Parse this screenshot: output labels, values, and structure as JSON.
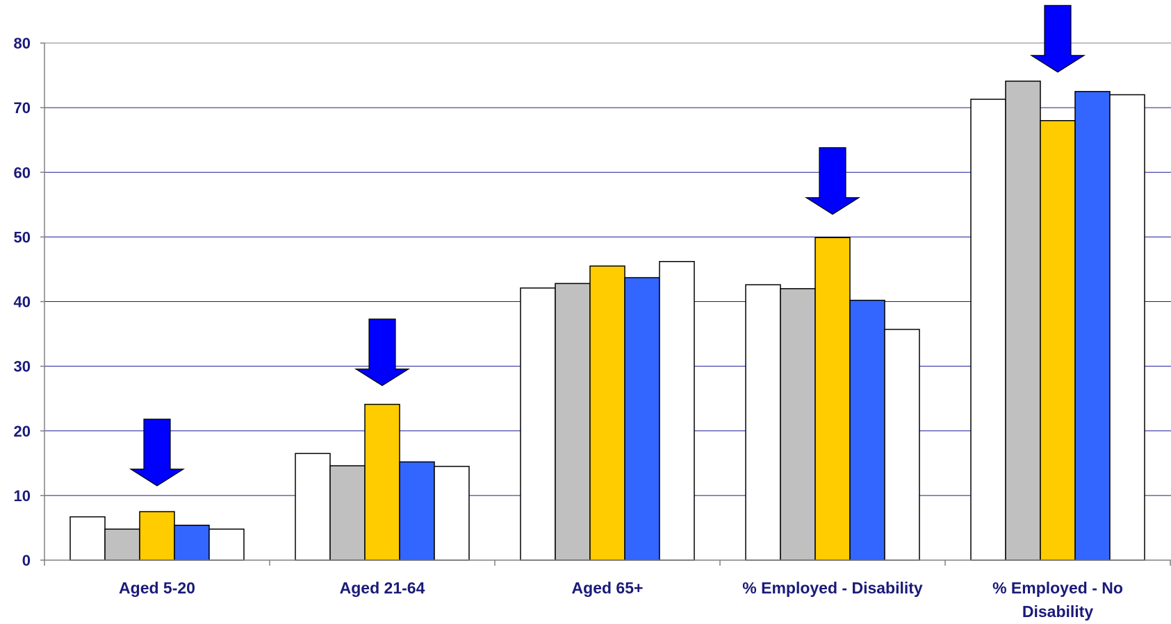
{
  "chart_data": {
    "type": "bar",
    "categories": [
      "Aged 5-20",
      "Aged 21-64",
      "Aged 65+",
      "% Employed - Disability",
      "% Employed - No Disability"
    ],
    "category_lines": [
      [
        "Aged 5-20"
      ],
      [
        "Aged 21-64"
      ],
      [
        "Aged 65+"
      ],
      [
        "% Employed - Disability"
      ],
      [
        "% Employed - No",
        "Disability"
      ]
    ],
    "series": [
      {
        "color": "#ffffff",
        "values": [
          6.7,
          16.5,
          42.1,
          42.6,
          71.3
        ]
      },
      {
        "color": "#c0c0c0",
        "values": [
          4.8,
          14.6,
          42.8,
          42.0,
          74.1
        ]
      },
      {
        "color": "#ffcc00",
        "values": [
          7.5,
          24.1,
          45.5,
          49.9,
          68.0
        ]
      },
      {
        "color": "#3366ff",
        "values": [
          5.4,
          15.2,
          43.7,
          40.2,
          72.5
        ]
      },
      {
        "color": "#ffffff",
        "values": [
          4.8,
          14.5,
          46.2,
          35.7,
          72.0
        ]
      }
    ],
    "ylim": [
      0,
      80
    ],
    "yticks": [
      0,
      10,
      20,
      30,
      40,
      50,
      60,
      70,
      80
    ],
    "grid": true,
    "annotations": [
      {
        "type": "down-arrow",
        "category_index": 0,
        "tip_value": 11.5,
        "color": "#0000ff"
      },
      {
        "type": "down-arrow",
        "category_index": 1,
        "tip_value": 27,
        "color": "#0000ff"
      },
      {
        "type": "down-arrow",
        "category_index": 3,
        "tip_value": 53.5,
        "color": "#0000ff"
      },
      {
        "type": "down-arrow",
        "category_index": 4,
        "tip_value": 75.5,
        "color": "#0000ff"
      }
    ],
    "colors": {
      "grid": "#1a1a9a",
      "axis": "#808080",
      "text": "#1a1a7a",
      "bar_outline": "#000000"
    }
  }
}
